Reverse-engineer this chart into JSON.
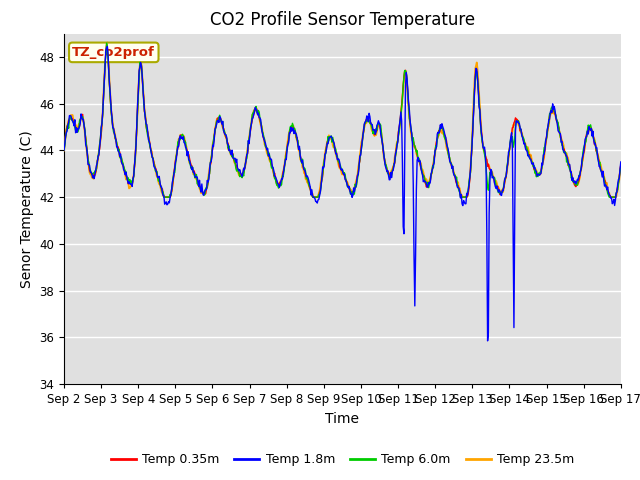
{
  "title": "CO2 Profile Sensor Temperature",
  "ylabel": "Senor Temperature (C)",
  "xlabel": "Time",
  "ylim": [
    34,
    49
  ],
  "yticks": [
    34,
    36,
    38,
    40,
    42,
    44,
    46,
    48
  ],
  "legend_label": "TZ_co2prof",
  "line_labels": [
    "Temp 0.35m",
    "Temp 1.8m",
    "Temp 6.0m",
    "Temp 23.5m"
  ],
  "line_colors": [
    "#FF0000",
    "#0000FF",
    "#00CC00",
    "#FFA500"
  ],
  "background_color": "#FFFFFF",
  "plot_bg_color": "#E0E0E0",
  "grid_color": "#FFFFFF",
  "xticklabels": [
    "Sep 2",
    "Sep 3",
    "Sep 4",
    "Sep 5",
    "Sep 6",
    "Sep 7",
    "Sep 8",
    "Sep 9",
    "Sep 10",
    "Sep 11",
    "Sep 12",
    "Sep 13",
    "Sep 14",
    "Sep 15",
    "Sep 16",
    "Sep 17"
  ],
  "title_fontsize": 12,
  "axis_fontsize": 10,
  "tick_fontsize": 8.5
}
